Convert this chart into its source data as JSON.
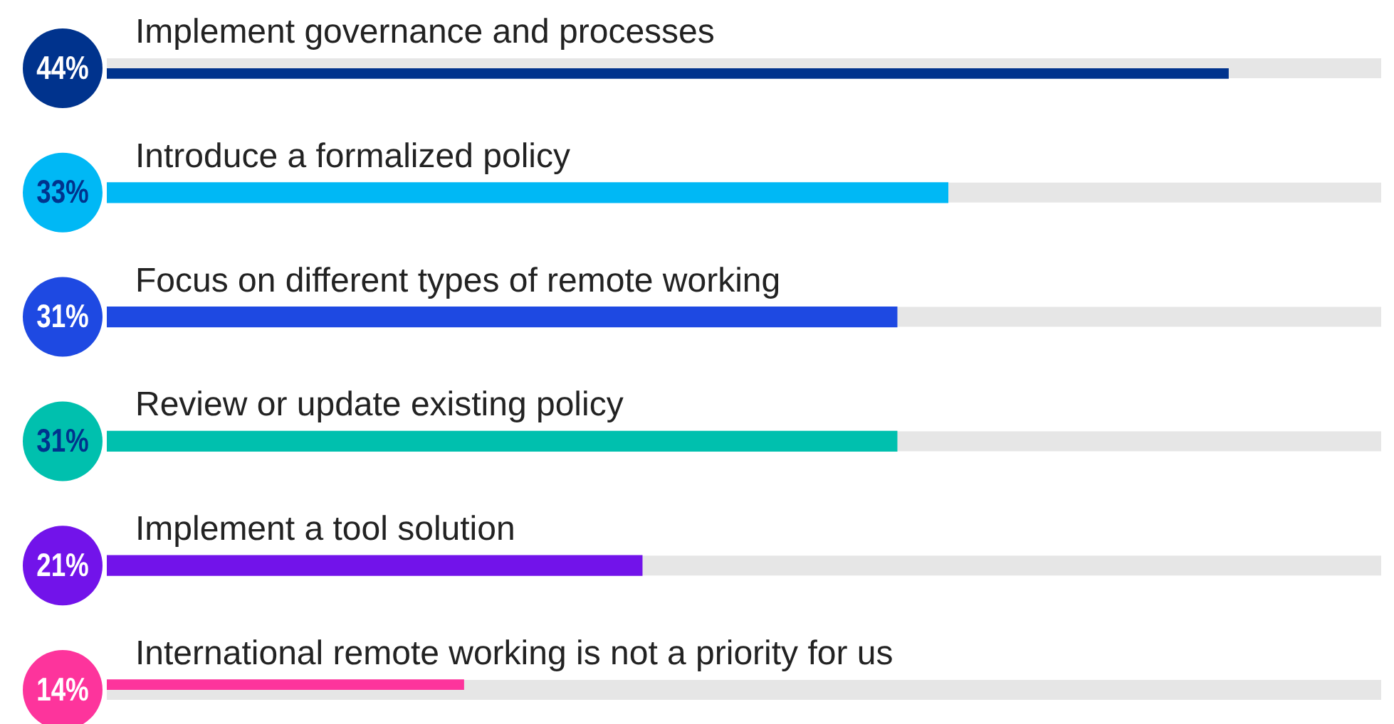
{
  "chart_data": {
    "type": "bar",
    "orientation": "horizontal",
    "categories": [
      "Implement governance and processes",
      "Introduce a formalized policy",
      "Focus on different types of remote working",
      "Review or update existing policy",
      "Implement a tool solution",
      "International remote working is not a priority for us"
    ],
    "values": [
      44,
      33,
      31,
      31,
      21,
      14
    ],
    "colors": [
      "#00338d",
      "#00b8f5",
      "#1e49e2",
      "#00c0ae",
      "#7213ea",
      "#fd349c"
    ],
    "value_labels": [
      "44%",
      "33%",
      "31%",
      "31%",
      "21%",
      "14%"
    ],
    "xlim": [
      0,
      50
    ]
  }
}
